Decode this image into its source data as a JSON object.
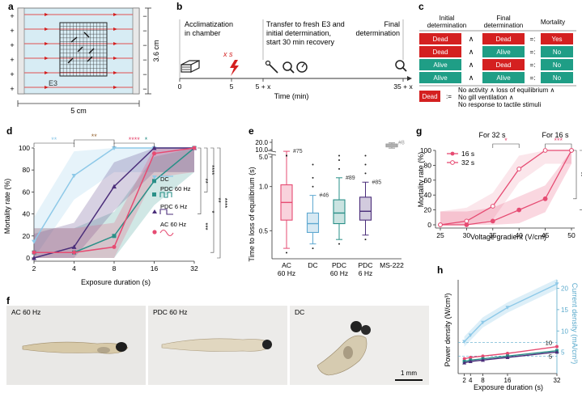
{
  "panels": {
    "a": "a",
    "b": "b",
    "c": "c",
    "d": "d",
    "e": "e",
    "f": "f",
    "g": "g",
    "h": "h"
  },
  "panel_a": {
    "medium": "E3",
    "width_label": "5 cm",
    "height_label": "3.6 cm",
    "plus": "+",
    "minus": "−"
  },
  "panel_b": {
    "t1": "Acclimatization",
    "t2": "in chamber",
    "t3": "x s",
    "t4": "Transfer to fresh E3 and",
    "t5": "initial determination,",
    "t6": "start 30 min recovery",
    "t7": "Final",
    "t8": "determination",
    "ticks": [
      "0",
      "5",
      "5 + x",
      "35 + x"
    ],
    "xlabel": "Time (min)"
  },
  "panel_c": {
    "header": [
      "Initial",
      "determination",
      "Final",
      "determination",
      "Mortality"
    ],
    "rows": [
      {
        "initial": "Dead",
        "and": "∧",
        "final": "Dead",
        "eq": "=:",
        "mort": "Yes"
      },
      {
        "initial": "Dead",
        "and": "∧",
        "final": "Alive",
        "eq": "=:",
        "mort": "No"
      },
      {
        "initial": "Alive",
        "and": "∧",
        "final": "Dead",
        "eq": "=:",
        "mort": "No"
      },
      {
        "initial": "Alive",
        "and": "∧",
        "final": "Alive",
        "eq": "=:",
        "mort": "No"
      }
    ],
    "def_label": "Dead",
    "def_eq": ":=",
    "def1": "No activity ∧ loss of equilibrium ∧",
    "def2": "No gill ventilation ∧",
    "def3": "No response to tactile stimuli"
  },
  "panel_f": {
    "labels": [
      "AC 60 Hz",
      "PDC 60 Hz",
      "DC"
    ],
    "scale": "1 mm"
  },
  "colors": {
    "ac": "#e64b72",
    "dc": "#8ec9e8",
    "pdc60": "#2a9088",
    "pdc6": "#4b2e7a",
    "dead": "#d42020",
    "alive": "#1f9e86",
    "grid": "#bfe3ee"
  },
  "chart_data": [
    {
      "id": "d",
      "type": "line",
      "xlabel": "Exposure duration (s)",
      "ylabel": "Mortality rate (%)",
      "x": [
        2,
        4,
        8,
        16,
        32
      ],
      "x_ticks": [
        "2",
        "4",
        "8",
        "16",
        "32"
      ],
      "y_ticks": [
        "0",
        "20",
        "40",
        "60",
        "80",
        "100"
      ],
      "ylim": [
        0,
        100
      ],
      "series": [
        {
          "name": "DC",
          "values": [
            15,
            75,
            100,
            100,
            100
          ]
        },
        {
          "name": "PDC 60 Hz",
          "values": [
            5,
            5,
            20,
            70,
            100
          ]
        },
        {
          "name": "PDC 6 Hz",
          "values": [
            0,
            10,
            65,
            100,
            100
          ]
        },
        {
          "name": "AC 60 Hz",
          "values": [
            5,
            5,
            10,
            95,
            100
          ]
        }
      ],
      "legend": [
        "DC",
        "PDC 60 Hz",
        "PDC 6 Hz",
        "AC 60 Hz"
      ],
      "annotations": [
        "**",
        "**",
        "****",
        "*",
        "**",
        "****",
        "**",
        "***",
        "*",
        "****"
      ]
    },
    {
      "id": "e",
      "type": "box",
      "ylabel": "Time to loss of equilibrium (s)",
      "categories": [
        "AC 60 Hz",
        "DC",
        "PDC 60 Hz",
        "PDC 6 Hz",
        "MS-222"
      ],
      "cat_lines": [
        [
          "AC",
          "60 Hz"
        ],
        [
          "DC"
        ],
        [
          "PDC",
          "60 Hz"
        ],
        [
          "PDC",
          "6 Hz"
        ],
        [
          "MS-222"
        ]
      ],
      "y_ticks": [
        "0.5",
        "1.0",
        "5.0",
        "10.0",
        "20.0"
      ],
      "y_tick_values": [
        0.5,
        1.0,
        5.0,
        10.0,
        20.0
      ],
      "n_labels": [
        "#75",
        "#46",
        "#89",
        "#85",
        "#8"
      ],
      "boxes": [
        {
          "min": 0.3,
          "q1": 0.62,
          "med": 0.82,
          "q3": 1.02,
          "max": 1.4
        },
        {
          "min": 0.35,
          "q1": 0.48,
          "med": 0.58,
          "q3": 0.7,
          "max": 0.9
        },
        {
          "min": 0.4,
          "q1": 0.58,
          "med": 0.7,
          "q3": 0.85,
          "max": 1.1
        },
        {
          "min": 0.45,
          "q1": 0.62,
          "med": 0.72,
          "q3": 0.88,
          "max": 1.05
        },
        {
          "min": 11.5,
          "q1": 13.0,
          "med": 15.0,
          "q3": 17.0,
          "max": 19.0
        }
      ]
    },
    {
      "id": "g",
      "type": "line",
      "xlabel": "Voltage gradient (V/cm)",
      "ylabel": "Mortality rate (%)",
      "x": [
        25,
        30,
        35,
        40,
        45,
        50
      ],
      "x_ticks": [
        "25",
        "30",
        "35",
        "40",
        "45",
        "50"
      ],
      "y_ticks": [
        "0",
        "20",
        "40",
        "60",
        "80",
        "100"
      ],
      "ylim": [
        0,
        100
      ],
      "series": [
        {
          "name": "16 s",
          "values": [
            0,
            0,
            5,
            20,
            35,
            100
          ]
        },
        {
          "name": "32 s",
          "values": [
            0,
            5,
            25,
            75,
            100,
            100
          ]
        }
      ],
      "annotations": [
        "For 32 s",
        "For 16 s",
        "*",
        "***",
        "**",
        "****"
      ]
    },
    {
      "id": "h",
      "type": "line",
      "xlabel": "Exposure duration (s)",
      "ylabel": "Power density (W/cm³)",
      "y2label": "Current density (mA/cm³)",
      "x_ticks": [
        "2",
        "4",
        "8",
        "16",
        "32"
      ],
      "x_tick_values": [
        2,
        4,
        8,
        16,
        32
      ],
      "y2_ticks": [
        "5",
        "10",
        "15",
        "20"
      ],
      "y2_tick_values": [
        5,
        10,
        15,
        20
      ],
      "y2_ticks_plain": [
        "10",
        "5"
      ],
      "y2lim": [
        0,
        22
      ],
      "series": [
        {
          "name": "DC",
          "axis": "y2",
          "x": [
            2,
            4,
            8,
            16,
            32
          ],
          "values": [
            7.5,
            9,
            12,
            15.5,
            21
          ]
        },
        {
          "name": "AC 60 Hz",
          "axis": "y1",
          "x": [
            2,
            4,
            8,
            16,
            32
          ],
          "values": [
            0.25,
            0.3,
            0.35,
            0.45,
            0.7
          ]
        },
        {
          "name": "PDC 60 Hz",
          "axis": "y1",
          "x": [
            2,
            4,
            8,
            16,
            32
          ],
          "values": [
            0.15,
            0.2,
            0.25,
            0.35,
            0.55
          ]
        },
        {
          "name": "PDC 6 Hz",
          "axis": "y1",
          "x": [
            2,
            4,
            8,
            16,
            32
          ],
          "values": [
            0.1,
            0.15,
            0.2,
            0.3,
            0.5
          ]
        }
      ]
    }
  ]
}
